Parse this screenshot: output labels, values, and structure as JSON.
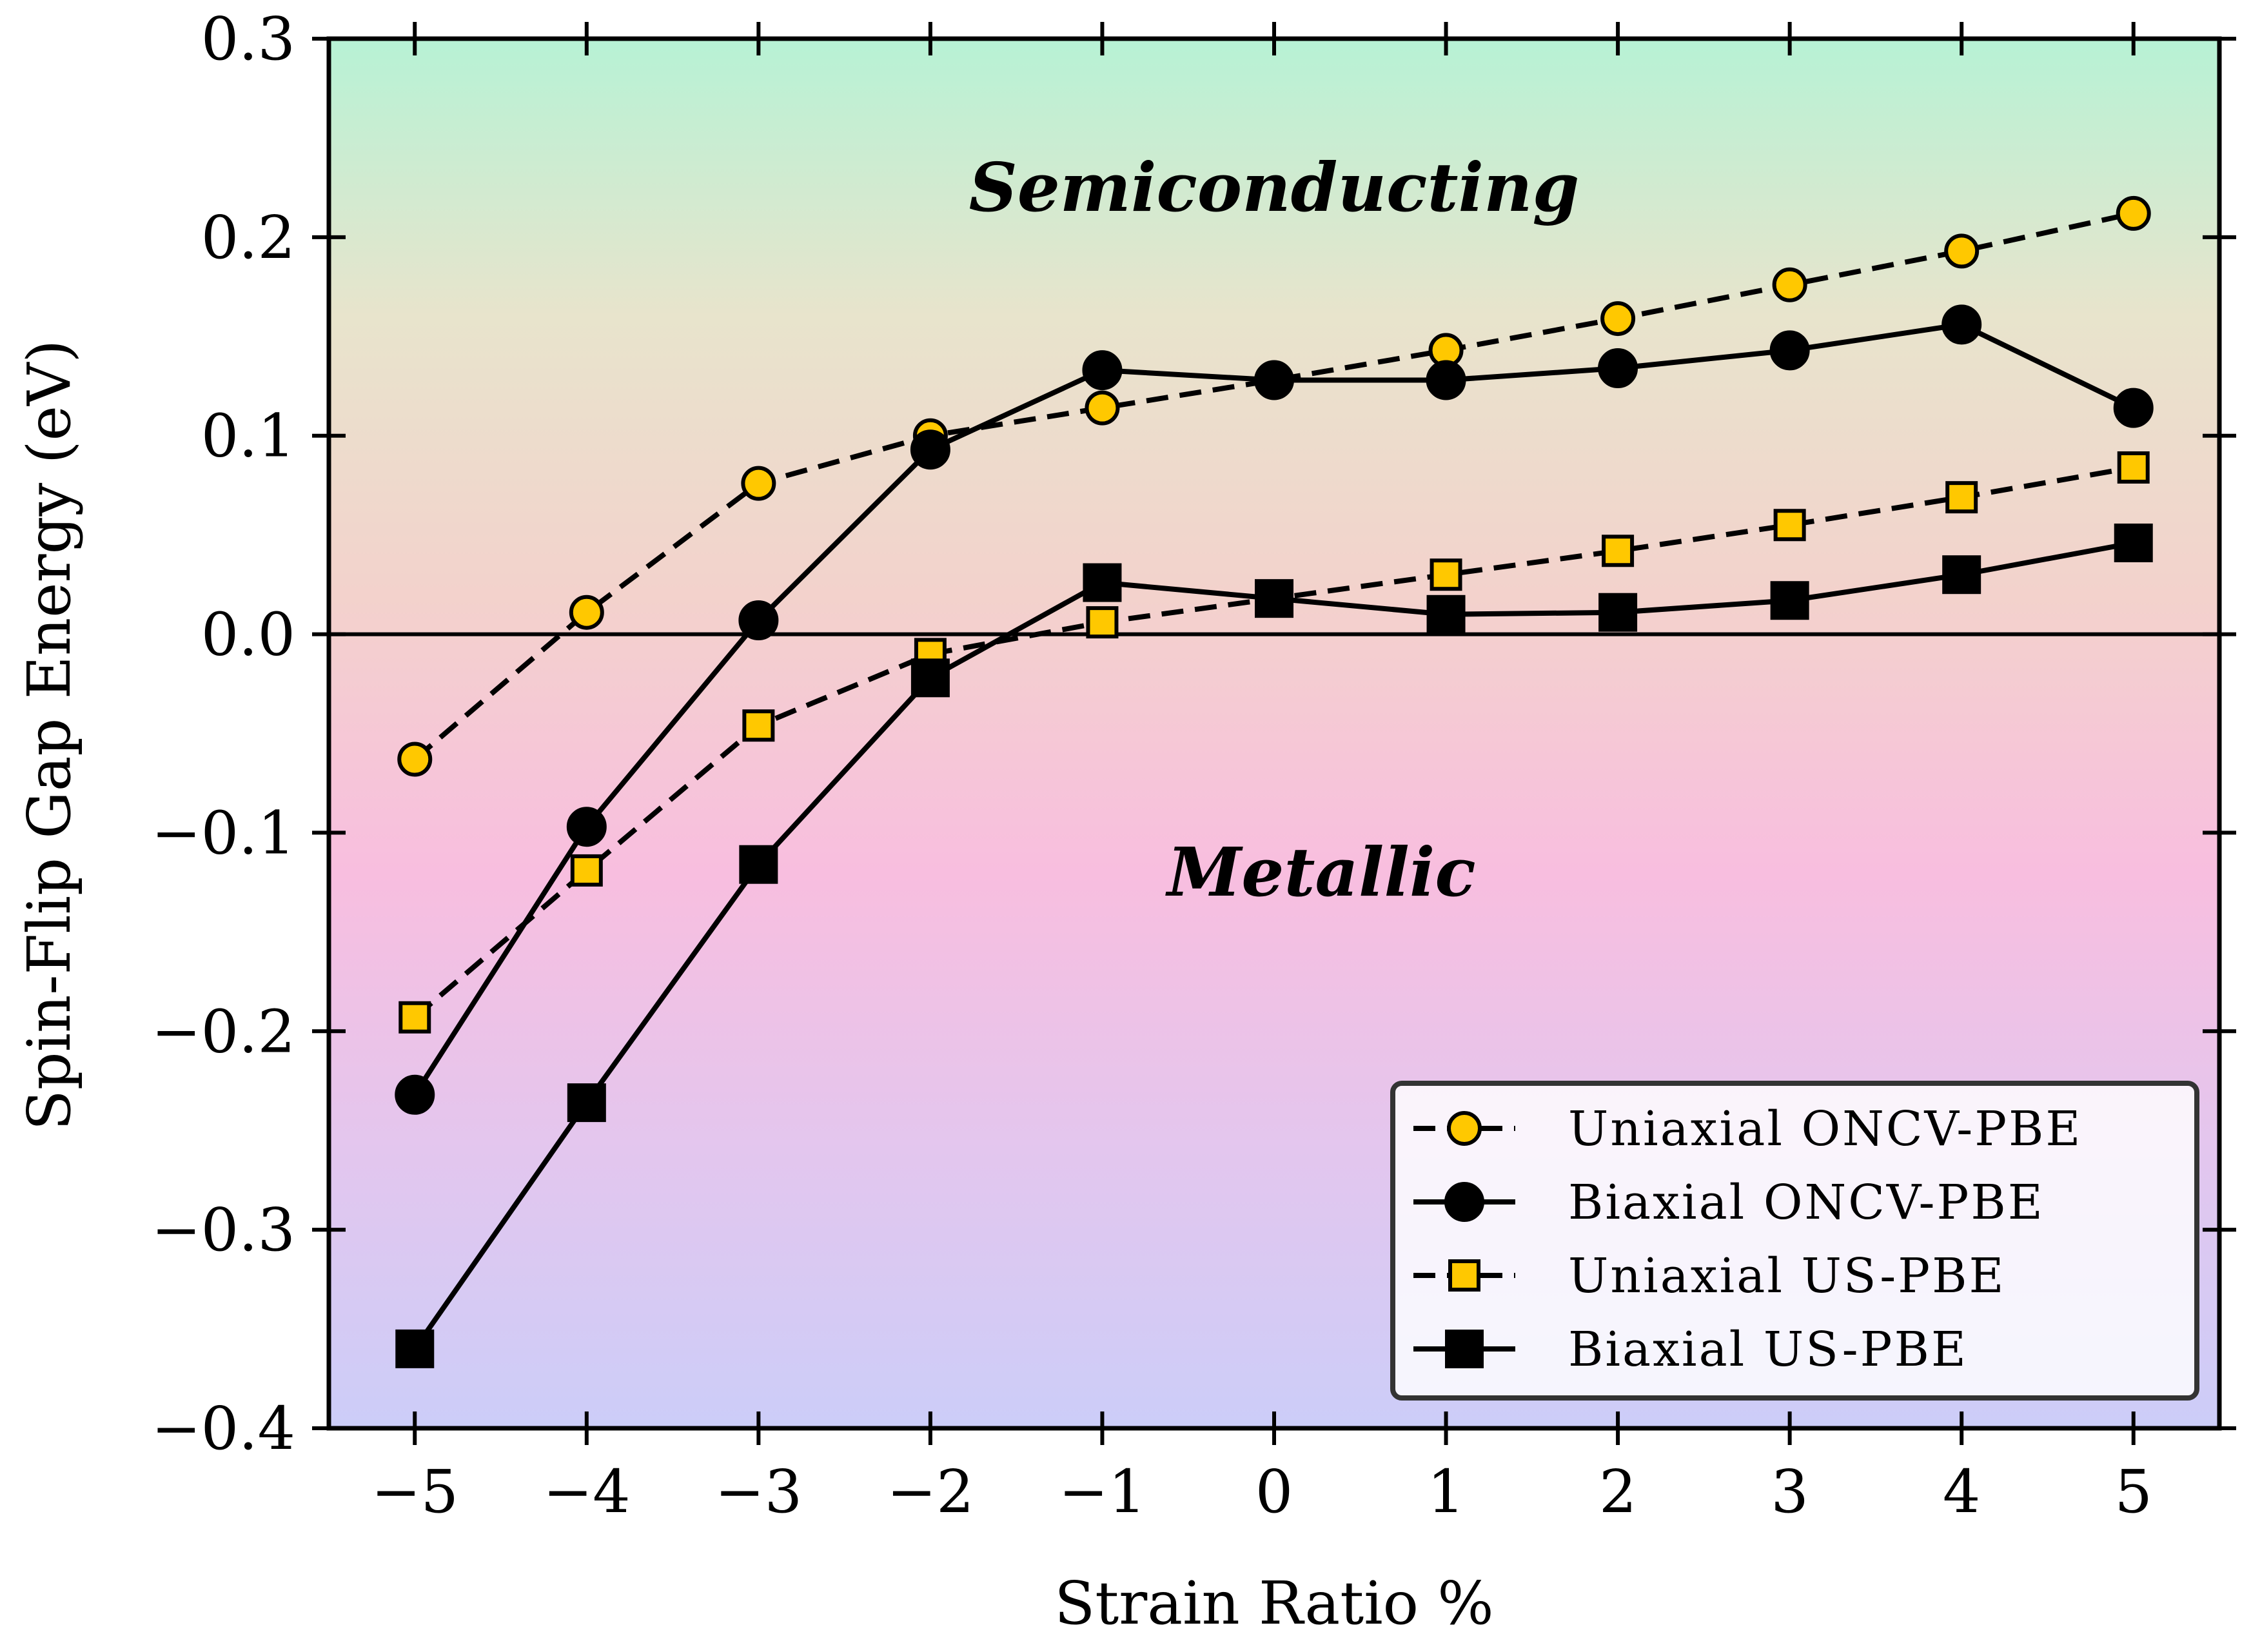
{
  "chart_data": {
    "type": "line",
    "title": "",
    "xlabel": "Strain Ratio %",
    "ylabel": "Spin-Flip Gap Energy (eV)",
    "xlim": [
      -5.5,
      5.5
    ],
    "ylim": [
      -0.4,
      0.3
    ],
    "x": [
      -5,
      -4,
      -3,
      -2,
      -1,
      0,
      1,
      2,
      3,
      4,
      5
    ],
    "xticks": [
      -5,
      -4,
      -3,
      -2,
      -1,
      0,
      1,
      2,
      3,
      4,
      5
    ],
    "xtick_labels": [
      "−5",
      "−4",
      "−3",
      "−2",
      "−1",
      "0",
      "1",
      "2",
      "3",
      "4",
      "5"
    ],
    "yticks": [
      -0.4,
      -0.3,
      -0.2,
      -0.1,
      0.0,
      0.1,
      0.2,
      0.3
    ],
    "ytick_labels": [
      "−0.4",
      "−0.3",
      "−0.2",
      "−0.1",
      "0.0",
      "0.1",
      "0.2",
      "0.3"
    ],
    "reference_line_y": 0.0,
    "regions": [
      {
        "label": "Semiconducting",
        "x": 0,
        "y": 0.225
      },
      {
        "label": "Metallic",
        "x": -1.0,
        "y": -0.12
      }
    ],
    "series": [
      {
        "name": "Uniaxial ONCV-PBE",
        "marker": "circle",
        "fill": "#FFC800",
        "line": "dashed",
        "values": [
          -0.063,
          0.011,
          0.076,
          0.1,
          0.114,
          0.128,
          0.143,
          0.159,
          0.176,
          0.193,
          0.212
        ]
      },
      {
        "name": "Biaxial ONCV-PBE",
        "marker": "circle",
        "fill": "#000000",
        "line": "solid",
        "values": [
          -0.232,
          -0.097,
          0.007,
          0.093,
          0.133,
          0.128,
          0.128,
          0.134,
          0.143,
          0.156,
          0.114
        ]
      },
      {
        "name": "Uniaxial US-PBE",
        "marker": "square",
        "fill": "#FFC800",
        "line": "dashed",
        "values": [
          -0.193,
          -0.119,
          -0.046,
          -0.01,
          0.006,
          0.018,
          0.03,
          0.042,
          0.055,
          0.069,
          0.084
        ]
      },
      {
        "name": "Biaxial US-PBE",
        "marker": "square",
        "fill": "#000000",
        "line": "solid",
        "values": [
          -0.36,
          -0.236,
          -0.116,
          -0.022,
          0.026,
          0.018,
          0.01,
          0.011,
          0.017,
          0.03,
          0.046
        ]
      }
    ],
    "legend_position": "lower-right",
    "grid": false,
    "background_gradient": [
      "#B7F2D5",
      "#E8E4CC",
      "#F3D2CC",
      "#F8BEDF",
      "#E3C6EE",
      "#CCCDF8"
    ]
  }
}
